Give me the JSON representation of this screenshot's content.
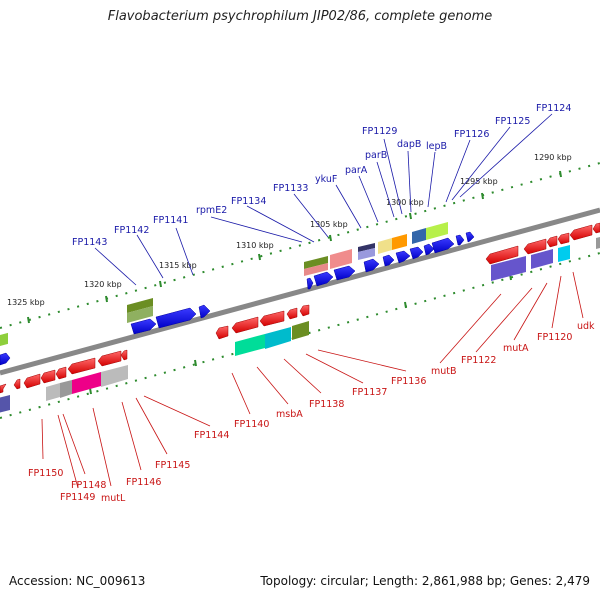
{
  "title": "Flavobacterium psychrophilum JIP02/86, complete genome",
  "footer": {
    "accession": "Accession: NC_009613",
    "summary": "Topology: circular; Length: 2,861,988 bp; Genes: 2,479"
  },
  "kbp_ticks": [
    "1325 kbp",
    "1320 kbp",
    "1315 kbp",
    "1310 kbp",
    "1305 kbp",
    "1300 kbp",
    "1295 kbp",
    "1290 kbp"
  ],
  "top_labels": [
    "FP1143",
    "FP1142",
    "FP1141",
    "rpmE2",
    "FP1134",
    "FP1133",
    "ykuF",
    "parA",
    "parB",
    "FP1129",
    "dapB",
    "lepB",
    "FP1126",
    "FP1125",
    "FP1124"
  ],
  "bottom_labels": [
    "FP1150",
    "FP1148",
    "FP1149",
    "mutL",
    "FP1146",
    "FP1145",
    "FP1144",
    "FP1140",
    "msbA",
    "FP1138",
    "FP1137",
    "FP1136",
    "mutB",
    "FP1122",
    "mutA",
    "FP1120",
    "udk"
  ],
  "colors": {
    "forward_genes": "#0a0ae6",
    "reverse_genes": "#e61414",
    "backbone": "#888888",
    "dots": "#2e8b2e"
  }
}
